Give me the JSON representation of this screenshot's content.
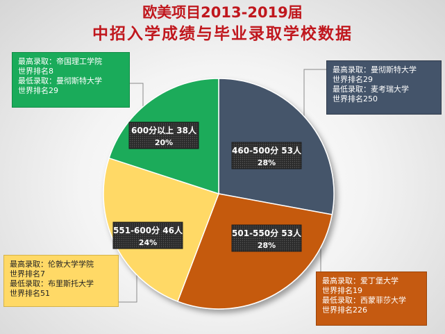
{
  "title": {
    "line1": "欧美项目2013-2019届",
    "line2": "中招入学成绩与毕业录取学校数据"
  },
  "chart_data": {
    "type": "pie",
    "unit": "人",
    "slices": [
      {
        "label": "460-500分",
        "count": 53,
        "percent": 28,
        "color": "#44546a",
        "best_line": "最高录取：曼彻斯特大学",
        "best_rank": "世界排名29",
        "worst_line": "最低录取：麦考瑞大学",
        "worst_rank": "世界排名250"
      },
      {
        "label": "501-550分",
        "count": 53,
        "percent": 28,
        "color": "#c55a11",
        "best_line": "最高录取：爱丁堡大学",
        "best_rank": "世界排名19",
        "worst_line": "最低录取：西蒙菲莎大学",
        "worst_rank": "世界排名226"
      },
      {
        "label": "551-600分",
        "count": 46,
        "percent": 24,
        "color": "#ffd966",
        "best_line": "最高录取：伦敦大学学院",
        "best_rank": "世界排名7",
        "worst_line": "最低录取：布里斯托大学",
        "worst_rank": "世界排名51"
      },
      {
        "label": "600分以上",
        "count": 38,
        "percent": 20,
        "color": "#1aab5a",
        "best_line": "最高录取：帝国理工学院",
        "best_rank": "世界排名8",
        "worst_line": "最低录取：曼彻斯特大学",
        "worst_rank": "世界排名29"
      }
    ]
  }
}
